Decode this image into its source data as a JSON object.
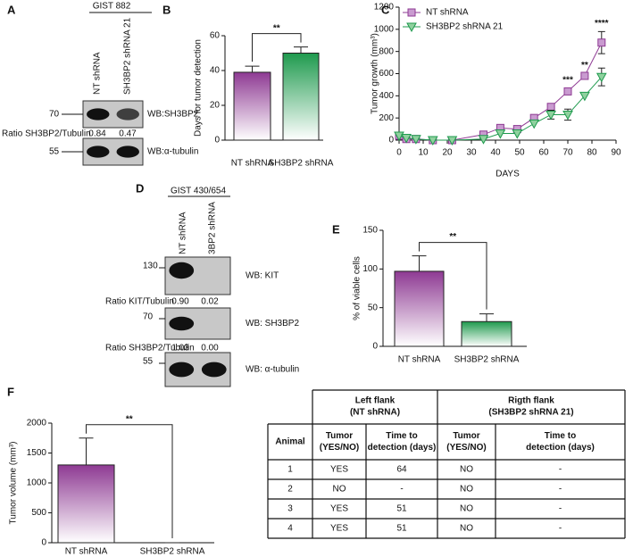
{
  "chart_data": [
    {
      "type": "bar",
      "panel": "B",
      "categories": [
        "NT shRNA",
        "SH3BP2 shRNA"
      ],
      "values": [
        39,
        50
      ],
      "errors": [
        3.5,
        3.5
      ],
      "colors": [
        "#8e3a93",
        "#1f9a4e"
      ],
      "ylim": [
        0,
        60
      ],
      "yticks": [
        0,
        20,
        40,
        60
      ],
      "ylabel": "Days for tumor detection",
      "significance": "**"
    },
    {
      "type": "line",
      "panel": "C",
      "x": [
        0,
        3,
        7,
        14,
        22,
        35,
        42,
        49,
        56,
        63,
        70,
        77,
        84
      ],
      "series": [
        {
          "name": "NT shRNA",
          "color": "#8e3a93",
          "marker": "square",
          "values": [
            40,
            10,
            10,
            0,
            0,
            50,
            110,
            100,
            200,
            300,
            440,
            580,
            880
          ],
          "errors": [
            null,
            null,
            null,
            null,
            null,
            null,
            null,
            null,
            null,
            20,
            30,
            20,
            100
          ]
        },
        {
          "name": "SH3BP2 shRNA 21",
          "color": "#1f9a4e",
          "marker": "triangle",
          "values": [
            40,
            20,
            10,
            0,
            0,
            10,
            60,
            60,
            150,
            230,
            230,
            400,
            570
          ],
          "errors": [
            null,
            null,
            null,
            null,
            null,
            null,
            null,
            null,
            null,
            40,
            50,
            null,
            80
          ]
        }
      ],
      "xlim": [
        0,
        90
      ],
      "xticks": [
        0,
        10,
        20,
        30,
        40,
        50,
        60,
        70,
        80,
        90
      ],
      "ylim": [
        0,
        1200
      ],
      "yticks": [
        0,
        200,
        400,
        600,
        800,
        1000,
        1200
      ],
      "xlabel": "DAYS",
      "ylabel": "Tumor growth (mm³)",
      "annotations": [
        {
          "text": "***",
          "x": 70
        },
        {
          "text": "**",
          "x": 77
        },
        {
          "text": "****",
          "x": 84
        }
      ]
    },
    {
      "type": "bar",
      "panel": "E",
      "categories": [
        "NT shRNA",
        "SH3BP2 shRNA"
      ],
      "values": [
        97,
        32
      ],
      "errors": [
        20,
        10
      ],
      "colors": [
        "#8e3a93",
        "#1f9a4e"
      ],
      "ylim": [
        0,
        150
      ],
      "yticks": [
        0,
        50,
        100,
        150
      ],
      "ylabel": "% of viable cells",
      "significance": "**"
    },
    {
      "type": "bar",
      "panel": "F",
      "categories": [
        "NT shRNA",
        "SH3BP2 shRNA"
      ],
      "values": [
        1300,
        0
      ],
      "errors": [
        450,
        0
      ],
      "colors": [
        "#8e3a93",
        "#1f9a4e"
      ],
      "ylim": [
        0,
        2000
      ],
      "yticks": [
        0,
        500,
        1000,
        1500,
        2000
      ],
      "ylabel": "Tumor volume (mm³)",
      "significance": "**"
    }
  ],
  "blots": [
    {
      "panel": "A",
      "title": "GIST 882",
      "lanes": [
        "NT shRNA",
        "SH3BP2 shRNA 21"
      ],
      "bands": [
        {
          "marker": "70",
          "label": "WB:SH3BP2"
        },
        {
          "marker": "55",
          "label": "WB:α-tubulin"
        }
      ],
      "ratio_label": "Ratio SH3BP2/Tubulin",
      "ratios": [
        "0.84",
        "0.47"
      ]
    },
    {
      "panel": "D",
      "title": "GIST 430/654",
      "lanes": [
        "NT shRNA",
        "3BP2 shRNA"
      ],
      "bands": [
        {
          "marker": "130",
          "label": "WB: KIT"
        },
        {
          "marker": "70",
          "label": "WB: SH3BP2"
        },
        {
          "marker": "55",
          "label": "WB: α-tubulin"
        }
      ],
      "ratio_rows": [
        {
          "label": "Ratio KIT/Tubulin",
          "values": [
            "0.90",
            "0.02"
          ]
        },
        {
          "label": "Ratio SH3BP2/Tubulin",
          "values": [
            "1.03",
            "0.00"
          ]
        }
      ]
    }
  ],
  "table": {
    "group_headers": [
      [
        "Left flank",
        "(NT shRNA)"
      ],
      [
        "Rigth flank",
        "(SH3BP2 shRNA 21)"
      ]
    ],
    "columns": [
      [
        "Animal"
      ],
      [
        "Tumor",
        "(YES/NO)"
      ],
      [
        "Time to",
        "detection (days)"
      ],
      [
        "Tumor",
        "(YES/NO)"
      ],
      [
        "Time to",
        "detection (days)"
      ]
    ],
    "rows": [
      [
        1,
        "YES",
        64,
        "NO",
        "-"
      ],
      [
        2,
        "NO",
        "-",
        "NO",
        "-"
      ],
      [
        3,
        "YES",
        51,
        "NO",
        "-"
      ],
      [
        4,
        "YES",
        51,
        "NO",
        "-"
      ]
    ]
  }
}
